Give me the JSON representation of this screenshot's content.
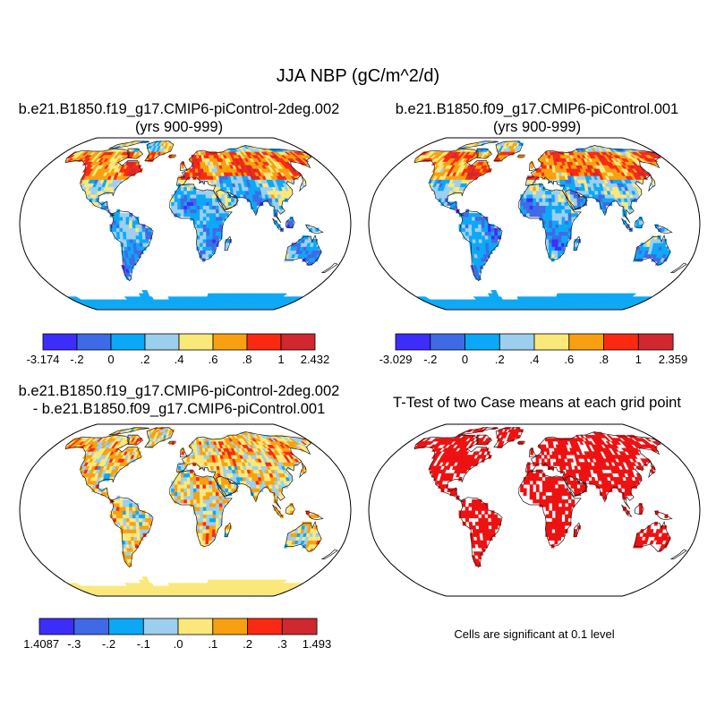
{
  "title": "JJA NBP (gC/m^2/d)",
  "panels": [
    {
      "id": "case1",
      "title_line1": "b.e21.B1850.f19_g17.CMIP6-piControl-2deg.002",
      "title_line2": "(yrs 900-999)",
      "colorbar": {
        "labels": [
          "-3.174",
          "-.2",
          "0",
          ".2",
          ".4",
          ".6",
          ".8",
          "1",
          "2.432"
        ],
        "colors": [
          "#3c2dfa",
          "#3f6ae6",
          "#0ba8f7",
          "#9ccfee",
          "#fbe87a",
          "#f8a010",
          "#fb2912",
          "#d0282e"
        ]
      }
    },
    {
      "id": "case2",
      "title_line1": "b.e21.B1850.f09_g17.CMIP6-piControl.001",
      "title_line2": "(yrs 900-999)",
      "colorbar": {
        "labels": [
          "-3.029",
          "-.2",
          "0",
          ".2",
          ".4",
          ".6",
          ".8",
          "1",
          "2.359"
        ],
        "colors": [
          "#3c2dfa",
          "#3f6ae6",
          "#0ba8f7",
          "#9ccfee",
          "#fbe87a",
          "#f8a010",
          "#fb2912",
          "#d0282e"
        ]
      }
    },
    {
      "id": "difference",
      "title_line1": "b.e21.B1850.f19_g17.CMIP6-piControl-2deg.002",
      "title_line2": "- b.e21.B1850.f09_g17.CMIP6-piControl.001",
      "colorbar": {
        "labels": [
          "-1.4087",
          "-.3",
          "-.2",
          "-.1",
          ".0",
          ".1",
          ".2",
          ".3",
          "1.493"
        ],
        "colors": [
          "#3c2dfa",
          "#3f6ae6",
          "#0ba8f7",
          "#9ccfee",
          "#fbe87a",
          "#f8a010",
          "#fb2912",
          "#d0282e"
        ]
      }
    },
    {
      "id": "ttest",
      "title_line1": "T-Test of two Case means at each grid point",
      "title_line2": "",
      "note": "Cells are significant at 0.1 level",
      "significant_color": "#ee1010"
    }
  ],
  "map": {
    "projection": "robinson",
    "ocean_color": "#ffffff",
    "outline_color": "#000000"
  }
}
